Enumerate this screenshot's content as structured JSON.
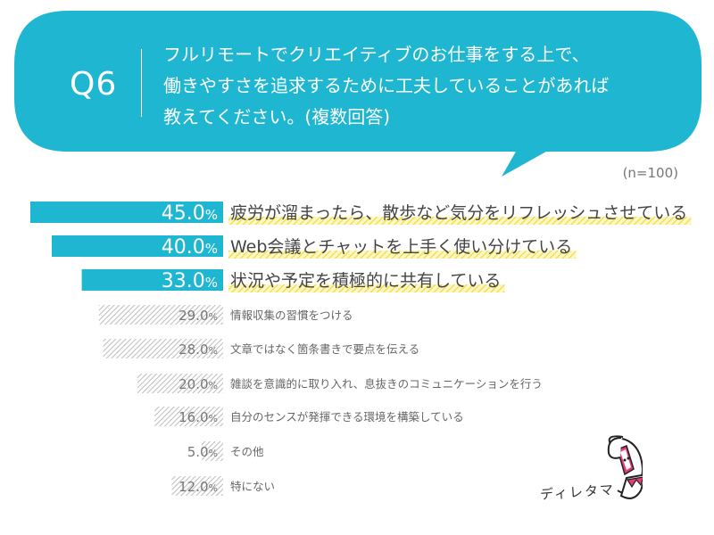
{
  "question": {
    "label": "Q6",
    "lines": [
      "フルリモートでクリエイティブのお仕事をする上で、",
      "働きやすさを追求するために工夫していることがあれば",
      "教えてください。(複数回答)"
    ]
  },
  "sample_note": "(n=100)",
  "brand": {
    "logo_text": "ディレタマ"
  },
  "colors": {
    "accent": "#1fb6d2",
    "highlight": "#f5e04a",
    "grey_bar": "#c8c8c8",
    "text_dark": "#444444",
    "text_grey": "#666666"
  },
  "chart_data": {
    "type": "bar",
    "orientation": "horizontal",
    "categories": [
      "疲労が溜まったら、散歩など気分をリフレッシュさせている",
      "Web会議とチャットを上手く使い分けている",
      "状況や予定を積極的に共有している",
      "情報収集の習慣をつける",
      "文章ではなく箇条書きで要点を伝える",
      "雑談を意識的に取り入れ、息抜きのコミュニケーションを行う",
      "自分のセンスが発揮できる環境を構築している",
      "その他",
      "特にない"
    ],
    "values": [
      45.0,
      40.0,
      33.0,
      29.0,
      28.0,
      20.0,
      16.0,
      5.0,
      12.0
    ],
    "value_labels": [
      "45.0",
      "40.0",
      "33.0",
      "29.0",
      "28.0",
      "20.0",
      "16.0",
      "5.0",
      "12.0"
    ],
    "unit": "%",
    "highlight_top": 3,
    "xlim": [
      0,
      50
    ]
  }
}
